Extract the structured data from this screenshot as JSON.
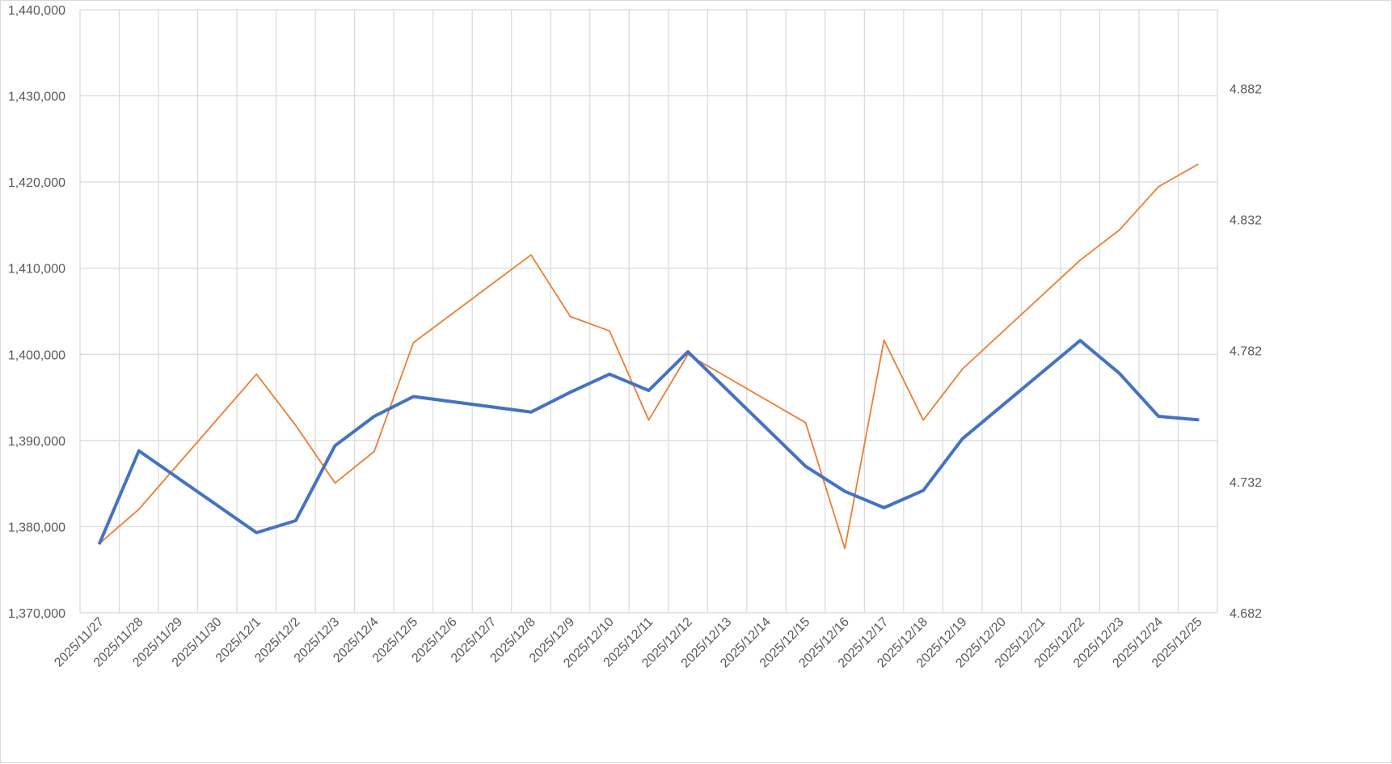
{
  "chart_data": {
    "type": "line",
    "title": "",
    "xlabel": "",
    "ylabel": "",
    "legend": "none",
    "grid": true,
    "categories": [
      "2025/11/27",
      "2025/11/28",
      "2025/11/29",
      "2025/11/30",
      "2025/12/1",
      "2025/12/2",
      "2025/12/3",
      "2025/12/4",
      "2025/12/5",
      "2025/12/6",
      "2025/12/7",
      "2025/12/8",
      "2025/12/9",
      "2025/12/10",
      "2025/12/11",
      "2025/12/12",
      "2025/12/13",
      "2025/12/14",
      "2025/12/15",
      "2025/12/16",
      "2025/12/17",
      "2025/12/18",
      "2025/12/19",
      "2025/12/20",
      "2025/12/21",
      "2025/12/22",
      "2025/12/23",
      "2025/12/24",
      "2025/12/25"
    ],
    "y_left": {
      "ylim": [
        1370000,
        1440000
      ],
      "ticks": [
        1370000,
        1380000,
        1390000,
        1400000,
        1410000,
        1420000,
        1430000,
        1440000
      ],
      "tick_labels": [
        "1,370,000",
        "1,380,000",
        "1,390,000",
        "1,400,000",
        "1,410,000",
        "1,420,000",
        "1,430,000",
        "1,440,000"
      ]
    },
    "y_right": {
      "ylim": [
        4.682,
        4.912
      ],
      "ticks": [
        4.682,
        4.732,
        4.782,
        4.832,
        4.882
      ],
      "tick_labels": [
        "4.682",
        "4.732",
        "4.782",
        "4.832",
        "4.882"
      ]
    },
    "series": [
      {
        "axis": "left",
        "color": "#4472c4",
        "points": [
          [
            "2025/11/27",
            1378100
          ],
          [
            "2025/11/28",
            1388800
          ],
          [
            "2025/12/1",
            1379300
          ],
          [
            "2025/12/2",
            1380700
          ],
          [
            "2025/12/3",
            1389400
          ],
          [
            "2025/12/4",
            1392800
          ],
          [
            "2025/12/5",
            1395100
          ],
          [
            "2025/12/8",
            1393300
          ],
          [
            "2025/12/9",
            1395600
          ],
          [
            "2025/12/10",
            1397700
          ],
          [
            "2025/12/11",
            1395800
          ],
          [
            "2025/12/12",
            1400300
          ],
          [
            "2025/12/15",
            1387000
          ],
          [
            "2025/12/16",
            1384100
          ],
          [
            "2025/12/17",
            1382200
          ],
          [
            "2025/12/18",
            1384200
          ],
          [
            "2025/12/19",
            1390200
          ],
          [
            "2025/12/22",
            1401600
          ],
          [
            "2025/12/23",
            1397800
          ],
          [
            "2025/12/24",
            1392800
          ],
          [
            "2025/12/25",
            1392400
          ]
        ]
      },
      {
        "axis": "right",
        "color": "#ed7d31",
        "points": [
          [
            "2025/11/27",
            4.7085
          ],
          [
            "2025/11/28",
            4.7215
          ],
          [
            "2025/12/1",
            4.773
          ],
          [
            "2025/12/2",
            4.7535
          ],
          [
            "2025/12/3",
            4.7315
          ],
          [
            "2025/12/4",
            4.7435
          ],
          [
            "2025/12/5",
            4.785
          ],
          [
            "2025/12/8",
            4.8185
          ],
          [
            "2025/12/9",
            4.795
          ],
          [
            "2025/12/10",
            4.7895
          ],
          [
            "2025/12/11",
            4.7555
          ],
          [
            "2025/12/12",
            4.7805
          ],
          [
            "2025/12/15",
            4.7545
          ],
          [
            "2025/12/16",
            4.7065
          ],
          [
            "2025/12/17",
            4.786
          ],
          [
            "2025/12/18",
            4.7555
          ],
          [
            "2025/12/19",
            4.775
          ],
          [
            "2025/12/22",
            4.8165
          ],
          [
            "2025/12/23",
            4.828
          ],
          [
            "2025/12/24",
            4.8445
          ],
          [
            "2025/12/25",
            4.853
          ]
        ]
      }
    ]
  }
}
